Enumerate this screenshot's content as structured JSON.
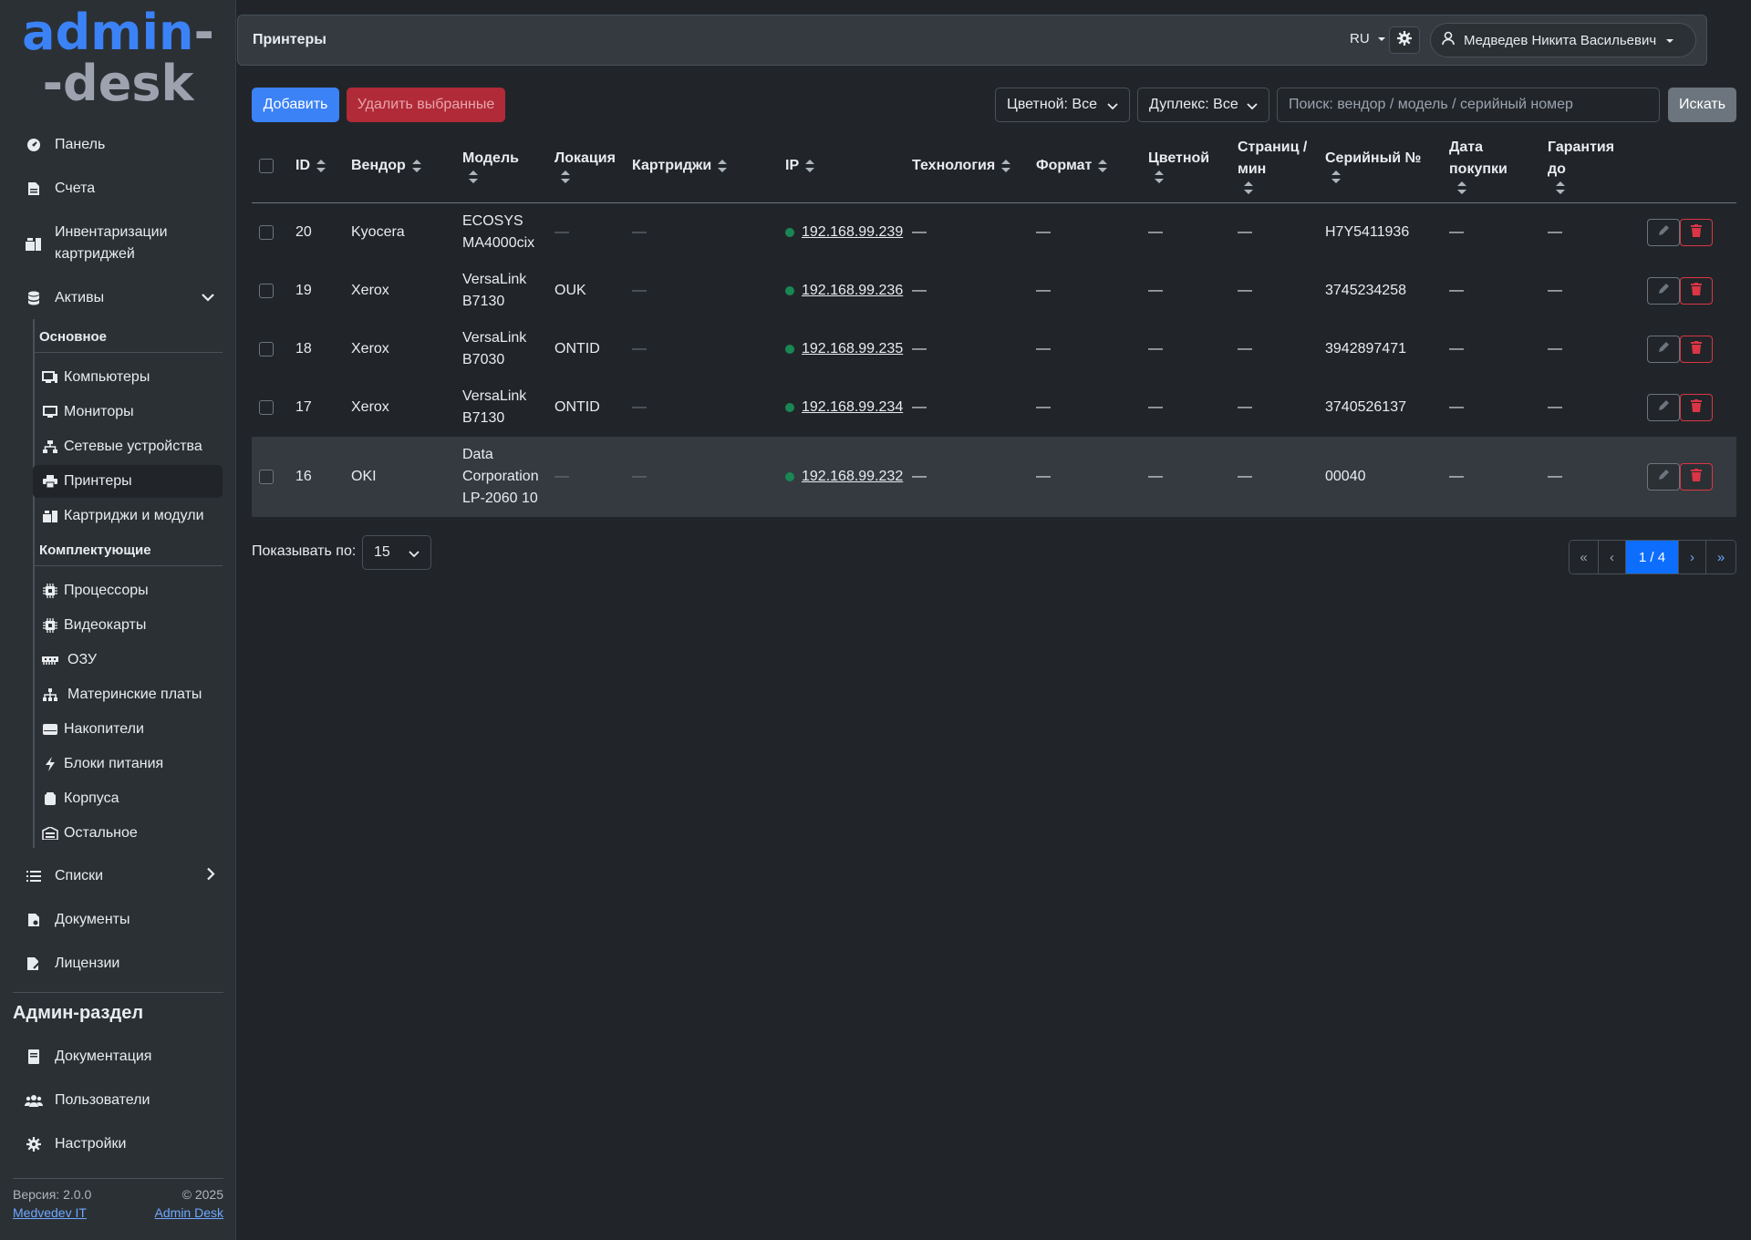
{
  "logo": {
    "line1": "admin",
    "line1_dash": "-",
    "line2": "-desk"
  },
  "sidebar": {
    "items": [
      {
        "label": "Панель",
        "icon": "gauge-icon"
      },
      {
        "label": "Счета",
        "icon": "invoice-icon"
      },
      {
        "label": "Инвентаризации картриджей",
        "icon": "inventory-icon"
      },
      {
        "label": "Активы",
        "icon": "database-icon"
      }
    ],
    "assets_group_main": "Основное",
    "assets_main": [
      {
        "label": "Компьютеры",
        "icon": "computer-icon"
      },
      {
        "label": "Мониторы",
        "icon": "monitor-icon"
      },
      {
        "label": "Сетевые устройства",
        "icon": "network-icon"
      },
      {
        "label": "Принтеры",
        "icon": "printer-icon"
      },
      {
        "label": "Картриджи и модули",
        "icon": "cartridge-icon"
      }
    ],
    "assets_group_parts": "Комплектующие",
    "assets_parts": [
      {
        "label": "Процессоры",
        "icon": "cpu-icon"
      },
      {
        "label": "Видеокарты",
        "icon": "gpu-icon"
      },
      {
        "label": "ОЗУ",
        "icon": "ram-icon"
      },
      {
        "label": "Материнские платы",
        "icon": "motherboard-icon"
      },
      {
        "label": "Накопители",
        "icon": "drive-icon"
      },
      {
        "label": "Блоки питания",
        "icon": "bolt-icon"
      },
      {
        "label": "Корпуса",
        "icon": "case-icon"
      },
      {
        "label": "Остальное",
        "icon": "box-icon"
      }
    ],
    "items_after": [
      {
        "label": "Списки",
        "icon": "list-icon"
      },
      {
        "label": "Документы",
        "icon": "document-icon"
      },
      {
        "label": "Лицензии",
        "icon": "license-icon"
      }
    ],
    "admin_title": "Админ-раздел",
    "admin_items": [
      {
        "label": "Документация",
        "icon": "book-icon"
      },
      {
        "label": "Пользователи",
        "icon": "users-icon"
      },
      {
        "label": "Настройки",
        "icon": "gear-icon"
      }
    ],
    "footer": {
      "version": "Версия: 2.0.0",
      "copyright": "© 2025",
      "author_link": "Medvedev IT",
      "product_link": "Admin Desk"
    }
  },
  "header": {
    "title": "Принтеры",
    "lang": "RU",
    "user": "Медведев Никита Васильевич"
  },
  "toolbar": {
    "add": "Добавить",
    "delete_selected": "Удалить выбранные",
    "color_filter": "Цветной: Все",
    "duplex_filter": "Дуплекс: Все",
    "search_placeholder": "Поиск: вендор / модель / серийный номер",
    "search_button": "Искать"
  },
  "table": {
    "columns": [
      "ID",
      "Вендор",
      "Модель",
      "Локация",
      "Картриджи",
      "IP",
      "Технология",
      "Формат",
      "Цветной",
      "Страниц / мин",
      "Серийный №",
      "Дата покупки",
      "Гарантия до"
    ],
    "columns_split": {
      "pages": [
        "Страниц /",
        "мин"
      ],
      "purchase": [
        "Дата",
        "покупки"
      ],
      "warranty": [
        "Гарантия",
        "до"
      ]
    },
    "rows": [
      {
        "id": "20",
        "vendor": "Kyocera",
        "model": [
          "ECOSYS",
          "MA4000cix"
        ],
        "location": "—",
        "cartridges": "—",
        "ip": "192.168.99.239",
        "tech": "—",
        "format": "—",
        "color": "—",
        "ppm": "—",
        "serial": "H7Y5411936",
        "purchase": "—",
        "warranty": "—"
      },
      {
        "id": "19",
        "vendor": "Xerox",
        "model": [
          "VersaLink",
          "B7130"
        ],
        "location": "OUK",
        "cartridges": "—",
        "ip": "192.168.99.236",
        "tech": "—",
        "format": "—",
        "color": "—",
        "ppm": "—",
        "serial": "3745234258",
        "purchase": "—",
        "warranty": "—"
      },
      {
        "id": "18",
        "vendor": "Xerox",
        "model": [
          "VersaLink",
          "B7030"
        ],
        "location": "ONTID",
        "cartridges": "—",
        "ip": "192.168.99.235",
        "tech": "—",
        "format": "—",
        "color": "—",
        "ppm": "—",
        "serial": "3942897471",
        "purchase": "—",
        "warranty": "—"
      },
      {
        "id": "17",
        "vendor": "Xerox",
        "model": [
          "VersaLink",
          "B7130"
        ],
        "location": "ONTID",
        "cartridges": "—",
        "ip": "192.168.99.234",
        "tech": "—",
        "format": "—",
        "color": "—",
        "ppm": "—",
        "serial": "3740526137",
        "purchase": "—",
        "warranty": "—"
      },
      {
        "id": "16",
        "vendor": "OKI",
        "model": [
          "Data",
          "Corporation",
          "LP-2060 10"
        ],
        "location": "—",
        "cartridges": "—",
        "ip": "192.168.99.232",
        "tech": "—",
        "format": "—",
        "color": "—",
        "ppm": "—",
        "serial": "00040",
        "purchase": "—",
        "warranty": "—"
      }
    ]
  },
  "pagination": {
    "per_page_label": "Показывать по:",
    "per_page": "15",
    "first": "«",
    "prev": "‹",
    "current": "1 / 4",
    "next": "›",
    "last": "»"
  },
  "colors": {
    "accent": "#3b82f6",
    "danger": "#dc3545",
    "status_online": "#198754"
  }
}
